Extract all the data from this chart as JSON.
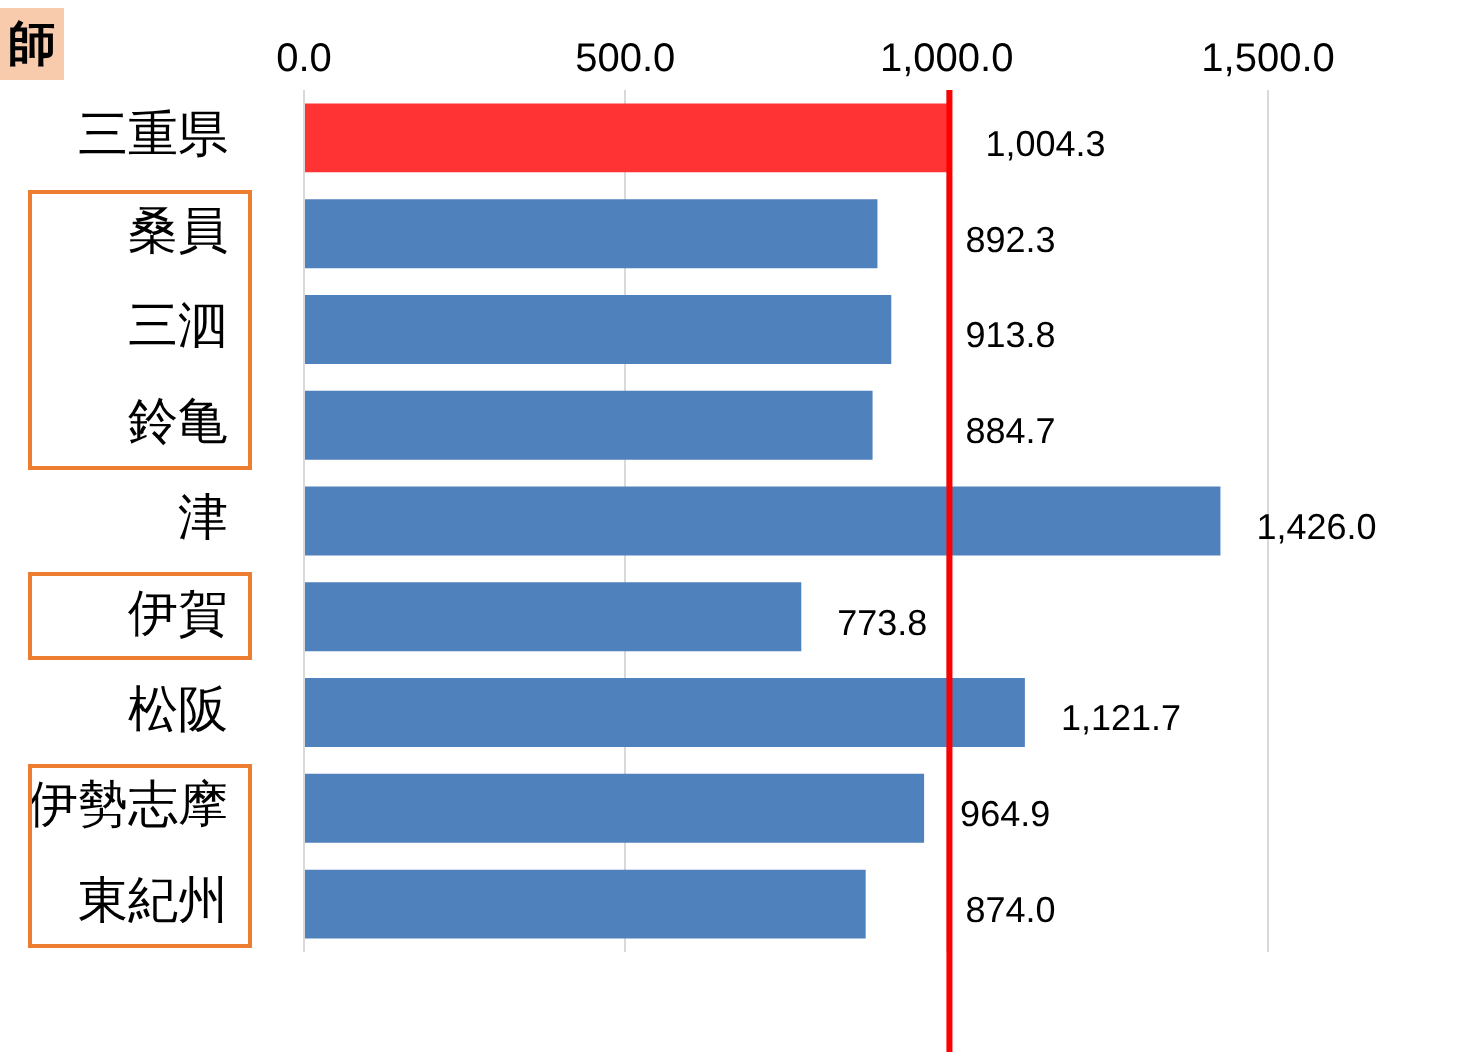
{
  "chart_data": {
    "type": "bar",
    "orientation": "horizontal",
    "categories": [
      "三重県",
      "桑員",
      "三泗",
      "鈴亀",
      "津",
      "伊賀",
      "松阪",
      "伊勢志摩",
      "東紀州"
    ],
    "values": [
      1004.3,
      892.3,
      913.8,
      884.7,
      1426.0,
      773.8,
      1121.7,
      964.9,
      874.0
    ],
    "colors": [
      "#ff3333",
      "#4f81bd",
      "#4f81bd",
      "#4f81bd",
      "#4f81bd",
      "#4f81bd",
      "#4f81bd",
      "#4f81bd",
      "#4f81bd"
    ],
    "value_labels": [
      "1,004.3",
      "892.3",
      "913.8",
      "884.7",
      "1,426.0",
      "773.8",
      "1,121.7",
      "964.9",
      "874.0"
    ],
    "xlim": [
      0,
      1500
    ],
    "xticks": [
      {
        "value": 0,
        "label": "0.0"
      },
      {
        "value": 500,
        "label": "500.0"
      },
      {
        "value": 1000,
        "label": "1,000.0"
      },
      {
        "value": 1500,
        "label": "1,500.0"
      }
    ],
    "grid": "x",
    "legend": false,
    "ref_lines": [
      {
        "axis": "x",
        "value": 1004.3,
        "color": "#ff0000"
      }
    ],
    "annotations": [
      "師"
    ]
  }
}
